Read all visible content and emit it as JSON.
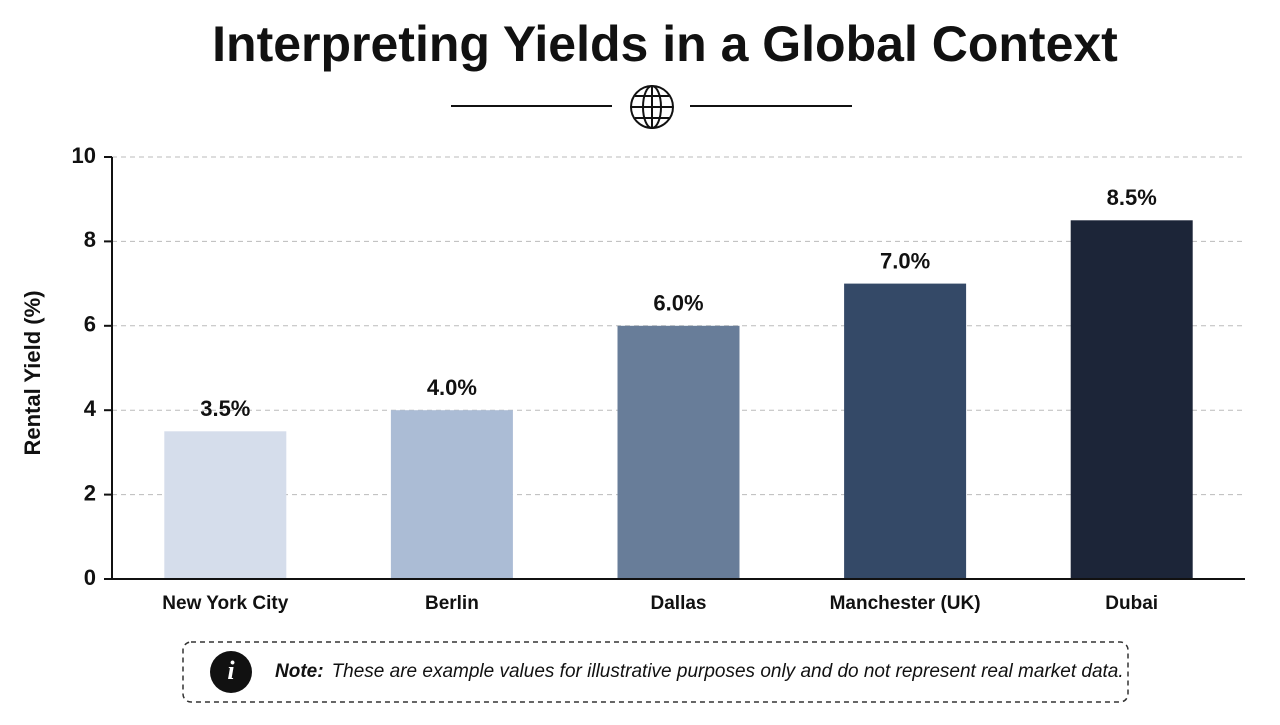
{
  "chart_data": {
    "type": "bar",
    "title": "Interpreting Yields in a Global Context",
    "y_label": "Rental Yield (%)",
    "categories": [
      "New York City",
      "Berlin",
      "Dallas",
      "Manchester (UK)",
      "Dubai"
    ],
    "values": [
      3.5,
      4.0,
      6.0,
      7.0,
      8.5
    ],
    "value_labels": [
      "3.5%",
      "4.0%",
      "6.0%",
      "7.0%",
      "8.5%"
    ],
    "colors": [
      "#d5ddeb",
      "#abbcd5",
      "#687d99",
      "#344967",
      "#1c2538"
    ],
    "ylim": [
      0,
      10
    ],
    "yticks": [
      0,
      2,
      4,
      6,
      8,
      10
    ],
    "grid": true
  },
  "note": {
    "label": "Note:",
    "text": "These are example values for illustrative purposes only and do not represent real market data."
  }
}
